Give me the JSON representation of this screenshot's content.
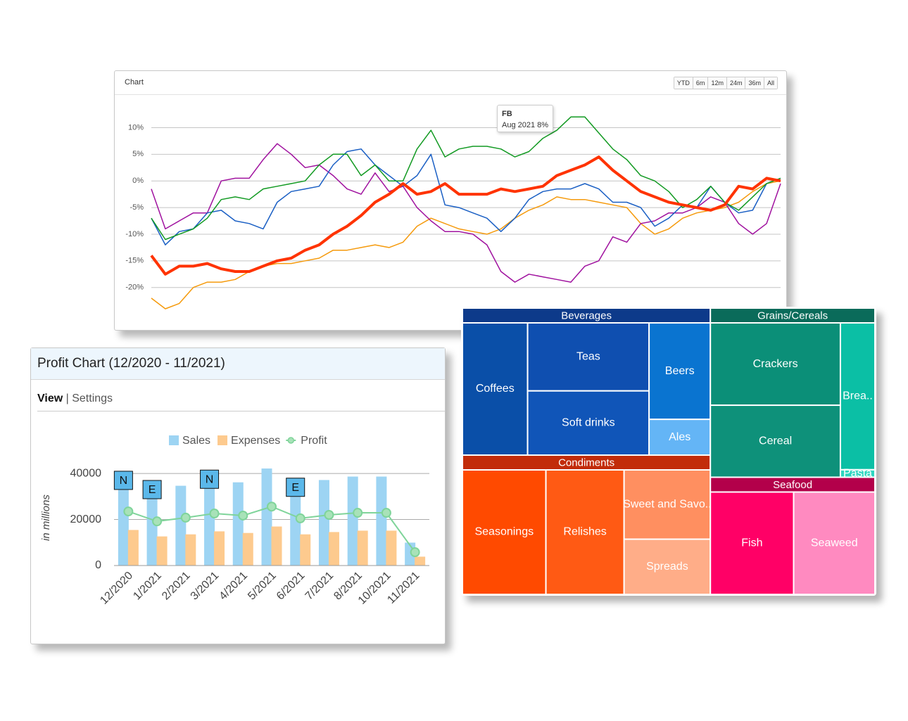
{
  "panels": {
    "line_panel": {
      "title": "Chart",
      "buttons": [
        "YTD",
        "6m",
        "12m",
        "24m",
        "36m",
        "All"
      ]
    },
    "profit_panel": {
      "title": "Profit Chart (12/2020 - 11/2021)",
      "tabs": [
        "View",
        "Settings"
      ],
      "separator": "|"
    }
  },
  "chart_data": [
    {
      "type": "line",
      "ylim": [
        -24,
        16
      ],
      "grid": true,
      "yticks": [
        {
          "value": 10,
          "label": "10%"
        },
        {
          "value": 5,
          "label": "5%"
        },
        {
          "value": 0,
          "label": "0%"
        },
        {
          "value": -5,
          "label": "-5%"
        },
        {
          "value": -10,
          "label": "-10%"
        },
        {
          "value": -15,
          "label": "-15%"
        },
        {
          "value": -20,
          "label": "-20%"
        }
      ],
      "tooltip": {
        "title": "FB",
        "text": "Aug 2021 8%"
      },
      "series": [
        {
          "color": "#f59a0c",
          "line_width": 1.5,
          "values": [
            -22,
            -24,
            -23,
            -20,
            -19,
            -19,
            -18.5,
            -17,
            -16,
            -15.5,
            -15.5,
            -15,
            -14.5,
            -13,
            -13,
            -12.5,
            -12,
            -12.5,
            -11.5,
            -8.5,
            -7,
            -8,
            -9,
            -9.5,
            -10,
            -9,
            -7,
            -5.5,
            -4.5,
            -3,
            -3.5,
            -3.5,
            -4,
            -4.5,
            -5,
            -8,
            -10,
            -9,
            -7,
            -6,
            -5.5,
            -5,
            -4,
            -2,
            -0.5,
            0
          ]
        },
        {
          "color": "#a0129f",
          "line_width": 1.5,
          "values": [
            -1.5,
            -9,
            -7.5,
            -6,
            -6,
            0,
            0.5,
            0.5,
            4,
            7,
            5,
            2.5,
            3,
            1,
            -1.5,
            -2.5,
            1.5,
            -2,
            -1,
            -5,
            -7.5,
            -9.5,
            -9.5,
            -10,
            -12,
            -17,
            -19,
            -17.5,
            -18,
            -18.5,
            -19,
            -16,
            -15,
            -10.5,
            -11.5,
            -8,
            -7.5,
            -6,
            -6,
            -5,
            -3,
            -4,
            -8,
            -10,
            -8,
            -0.5
          ]
        },
        {
          "color": "#1a5fc4",
          "line_width": 1.5,
          "values": [
            -7,
            -12,
            -9.5,
            -9,
            -6,
            -5.5,
            -7.5,
            -8,
            -9,
            -4,
            -2,
            -1.5,
            -1,
            3,
            5.5,
            6,
            3,
            1,
            -1,
            1,
            5,
            -4.5,
            -5,
            -6,
            -7,
            -9.5,
            -7,
            -3.5,
            -2,
            -1.5,
            -1.5,
            -0.5,
            -1.5,
            -4,
            -4,
            -5,
            -8.5,
            -7,
            -4.5,
            -5,
            -1,
            -4,
            -6,
            -5.5,
            -0.5,
            0.5
          ]
        },
        {
          "name": "FB",
          "color": "#129a22",
          "line_width": 1.5,
          "values": [
            -7,
            -11,
            -10,
            -9,
            -7,
            -3.5,
            -3,
            -3.5,
            -1.5,
            -1,
            -0.5,
            0,
            3,
            5,
            5,
            1,
            3,
            0,
            0,
            6,
            9.5,
            4.5,
            6,
            6.5,
            6.5,
            6,
            4.5,
            5.5,
            8,
            9.5,
            12,
            12,
            9,
            6,
            4,
            1,
            0,
            -2,
            -5,
            -3.5,
            -1,
            -4,
            -5.5,
            -3,
            -0.5,
            0.5
          ]
        },
        {
          "color": "#ff3300",
          "line_width": 4,
          "values": [
            -14,
            -17.5,
            -16,
            -16,
            -15.5,
            -16.5,
            -17,
            -17,
            -16,
            -15,
            -14.5,
            -13,
            -12,
            -10,
            -8.5,
            -6.5,
            -4,
            -2.5,
            -0.5,
            -2.5,
            -2,
            -0.5,
            -2.5,
            -2.5,
            -2.5,
            -1.5,
            -2,
            -1.5,
            -1,
            1,
            2,
            3,
            4.5,
            2,
            0,
            -2,
            -3,
            -4,
            -4.5,
            -5,
            -5.5,
            -4.5,
            -1,
            -1.5,
            0.5,
            0
          ]
        }
      ]
    },
    {
      "type": "bar",
      "y_axis_label": "in millions",
      "legend": "top",
      "grid": true,
      "ylim": [
        0,
        44000
      ],
      "yticks": [
        0,
        20000,
        40000
      ],
      "categories": [
        "12/2020",
        "1/2021",
        "2/2021",
        "3/2021",
        "4/2021",
        "5/2021",
        "6/2021",
        "7/2021",
        "8/2021",
        "10/2021",
        "11/2021"
      ],
      "markers": [
        "N",
        "E",
        null,
        "N",
        null,
        null,
        "E",
        null,
        null,
        null,
        null
      ],
      "series": [
        {
          "name": "Sales",
          "color": "#9dd4f3",
          "values": [
            37000,
            33000,
            34500,
            37500,
            36000,
            42000,
            34000,
            37000,
            38500,
            38500,
            9800
          ]
        },
        {
          "name": "Expenses",
          "color": "#fdca8e",
          "values": [
            15300,
            12500,
            13400,
            14700,
            14000,
            16800,
            13400,
            14400,
            15000,
            15000,
            3700
          ]
        },
        {
          "name": "Profit",
          "type": "line",
          "color": "#7fd49a",
          "values": [
            23500,
            19200,
            20800,
            22600,
            21700,
            25600,
            20500,
            22000,
            22900,
            22900,
            5800
          ]
        }
      ]
    },
    {
      "type": "treemap",
      "groups": [
        {
          "name": "Beverages",
          "color": "#0d3a8a",
          "children": [
            {
              "name": "Coffees",
              "value": 169,
              "color": "#0a4fa8"
            },
            {
              "name": "Teas",
              "value": 162,
              "color": "#0f4fb0"
            },
            {
              "name": "Soft drinks",
              "value": 153,
              "color": "#1055b8"
            },
            {
              "name": "Beers",
              "value": 116,
              "color": "#0a74d0"
            },
            {
              "name": "Ales",
              "value": 43,
              "color": "#64b5f6"
            }
          ]
        },
        {
          "name": "Grains/Cereals",
          "color": "#0a6b5a",
          "children": [
            {
              "name": "Crackers",
              "value": 207,
              "color": "#0b8f78"
            },
            {
              "name": "Cereal",
              "value": 181,
              "color": "#0e917a"
            },
            {
              "name": "Brea..",
              "value": 98,
              "color": "#0bbfa5"
            },
            {
              "name": "Pasta",
              "value": 5,
              "color": "#2ed6c0"
            }
          ]
        },
        {
          "name": "Condiments",
          "color": "#c22c0a",
          "children": [
            {
              "name": "Seasonings",
              "value": 205,
              "color": "#ff4a00"
            },
            {
              "name": "Relishes",
              "value": 192,
              "color": "#ff5a14"
            },
            {
              "name": "Sweet and Savo..",
              "value": 118,
              "color": "#ff8f60"
            },
            {
              "name": "Spreads",
              "value": 94,
              "color": "#ffad88"
            }
          ]
        },
        {
          "name": "Seafood",
          "color": "#b3004a",
          "children": [
            {
              "name": "Fish",
              "value": 172,
              "color": "#ff0066"
            },
            {
              "name": "Seaweed",
              "value": 168,
              "color": "#ff8ac0"
            }
          ]
        }
      ]
    }
  ]
}
